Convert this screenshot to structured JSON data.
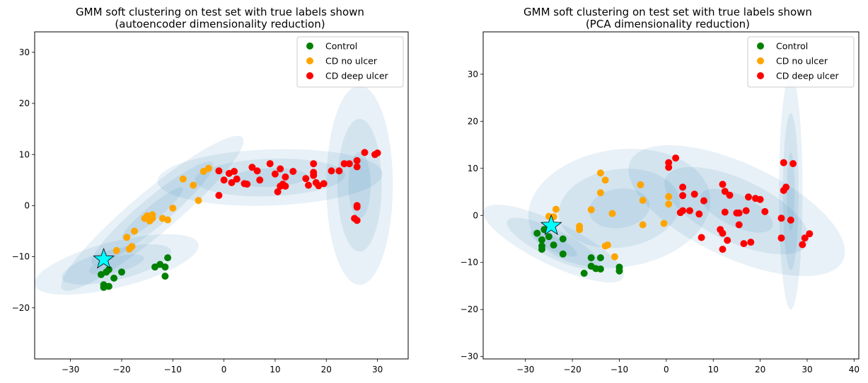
{
  "chart_data": [
    {
      "type": "scatter",
      "title": "GMM soft clustering on test set with true labels shown",
      "subtitle": "(autoencoder dimensionality reduction)",
      "xlim": [
        -37,
        36
      ],
      "ylim": [
        -30,
        34
      ],
      "xticks": [
        -30,
        -20,
        -10,
        0,
        10,
        20,
        30
      ],
      "yticks": [
        -20,
        -10,
        0,
        10,
        20,
        30
      ],
      "legend_position": "top-right",
      "series": [
        {
          "name": "Control",
          "color": "#008000",
          "points": [
            [
              -24,
              -13.5
            ],
            [
              -23,
              -13
            ],
            [
              -22.5,
              -12.5
            ],
            [
              -23.5,
              -15.5
            ],
            [
              -23.5,
              -16
            ],
            [
              -22.5,
              -15.8
            ],
            [
              -21.5,
              -14.2
            ],
            [
              -20,
              -13
            ],
            [
              -13.5,
              -12
            ],
            [
              -12.5,
              -11.5
            ],
            [
              -11.5,
              -12
            ],
            [
              -11,
              -10.2
            ],
            [
              -11.5,
              -13.8
            ]
          ]
        },
        {
          "name": "CD no ulcer",
          "color": "#FFA500",
          "points": [
            [
              -21,
              -8.8
            ],
            [
              -19,
              -6.2
            ],
            [
              -18.5,
              -8.5
            ],
            [
              -18,
              -8
            ],
            [
              -17.5,
              -5
            ],
            [
              -15.5,
              -2.5
            ],
            [
              -15,
              -2
            ],
            [
              -14.5,
              -3
            ],
            [
              -14,
              -2.5
            ],
            [
              -14,
              -1.8
            ],
            [
              -12,
              -2.5
            ],
            [
              -11,
              -2.8
            ],
            [
              -10,
              -0.5
            ],
            [
              -8,
              5.2
            ],
            [
              -6,
              4
            ],
            [
              -5,
              1
            ],
            [
              -4,
              6.7
            ],
            [
              -3,
              7.3
            ]
          ]
        },
        {
          "name": "CD deep ulcer",
          "color": "#FF0000",
          "points": [
            [
              -1,
              2
            ],
            [
              -1,
              6.8
            ],
            [
              0,
              5
            ],
            [
              1,
              6.3
            ],
            [
              1.5,
              4.5
            ],
            [
              2,
              6.7
            ],
            [
              2.5,
              5.2
            ],
            [
              4,
              4.3
            ],
            [
              4.5,
              4.2
            ],
            [
              5.5,
              7.5
            ],
            [
              6.5,
              6.8
            ],
            [
              7,
              5
            ],
            [
              9,
              8.2
            ],
            [
              10,
              6.2
            ],
            [
              10.5,
              2.7
            ],
            [
              11,
              3.8
            ],
            [
              11,
              7.2
            ],
            [
              11.5,
              4.2
            ],
            [
              12,
              5.6
            ],
            [
              12,
              3.8
            ],
            [
              13.5,
              6.7
            ],
            [
              16,
              5.3
            ],
            [
              16.5,
              4
            ],
            [
              17.5,
              6.5
            ],
            [
              17.5,
              8.2
            ],
            [
              17.5,
              5.9
            ],
            [
              18,
              4.5
            ],
            [
              18.5,
              3.9
            ],
            [
              19.5,
              4.3
            ],
            [
              21,
              6.8
            ],
            [
              22.5,
              6.8
            ],
            [
              23.5,
              8.2
            ],
            [
              24.5,
              8.2
            ],
            [
              26,
              8.8
            ],
            [
              26,
              7.6
            ],
            [
              26,
              0
            ],
            [
              26,
              -0.3
            ],
            [
              25.5,
              -2.5
            ],
            [
              26,
              -2.9
            ],
            [
              27.5,
              10.4
            ],
            [
              29.5,
              10
            ],
            [
              30,
              10.3
            ]
          ]
        }
      ],
      "centroid": [
        -23.5,
        -10.5
      ],
      "ellipses": [
        {
          "center": [
            -21,
            -11.5
          ],
          "sx": 16.5,
          "sy": 4.5,
          "angle": 14
        },
        {
          "center": [
            -14,
            -1.5
          ],
          "sx": 23,
          "sy": 4.2,
          "angle": 40
        },
        {
          "center": [
            9,
            5.5
          ],
          "sx": 22,
          "sy": 5.5,
          "angle": 2
        },
        {
          "center": [
            26.5,
            4
          ],
          "sx": 6.5,
          "sy": 19.5,
          "angle": 0
        }
      ]
    },
    {
      "type": "scatter",
      "title": "GMM soft clustering on test set with true labels shown",
      "subtitle": "(PCA dimensionality reduction)",
      "xlim": [
        -39,
        41
      ],
      "ylim": [
        -30.5,
        39
      ],
      "xticks": [
        -30,
        -20,
        -10,
        0,
        10,
        20,
        30,
        40
      ],
      "yticks": [
        -30,
        -20,
        -10,
        0,
        10,
        20,
        30
      ],
      "legend_position": "top-right",
      "series": [
        {
          "name": "Control",
          "color": "#008000",
          "points": [
            [
              -27.5,
              -3.8
            ],
            [
              -26.5,
              -5.2
            ],
            [
              -26.5,
              -6.5
            ],
            [
              -26.5,
              -7.2
            ],
            [
              -26,
              -3
            ],
            [
              -25,
              -4.5
            ],
            [
              -24,
              -6.3
            ],
            [
              -22,
              -5
            ],
            [
              -22,
              -8.2
            ],
            [
              -17.5,
              -12.3
            ],
            [
              -16,
              -9
            ],
            [
              -16,
              -10.8
            ],
            [
              -15,
              -11.3
            ],
            [
              -14,
              -9
            ],
            [
              -14,
              -11.4
            ],
            [
              -10,
              -11
            ],
            [
              -10,
              -11.8
            ]
          ]
        },
        {
          "name": "CD no ulcer",
          "color": "#FFA500",
          "points": [
            [
              -25,
              -0.2
            ],
            [
              -24,
              -0.3
            ],
            [
              -23.5,
              1.3
            ],
            [
              -18.5,
              -2.3
            ],
            [
              -18.5,
              -3
            ],
            [
              -16,
              1.2
            ],
            [
              -14,
              9
            ],
            [
              -14,
              4.8
            ],
            [
              -13,
              7.5
            ],
            [
              -13,
              -6.5
            ],
            [
              -12.5,
              -6.3
            ],
            [
              -11.5,
              0.4
            ],
            [
              -11,
              -8.8
            ],
            [
              -5.5,
              6.5
            ],
            [
              -5,
              3.2
            ],
            [
              -5,
              -2
            ],
            [
              -0.5,
              -1.7
            ],
            [
              0.5,
              4
            ],
            [
              0.5,
              2.4
            ]
          ]
        },
        {
          "name": "CD deep ulcer",
          "color": "#FF0000",
          "points": [
            [
              0.5,
              10.2
            ],
            [
              0.5,
              11.2
            ],
            [
              2,
              12.2
            ],
            [
              3,
              0.6
            ],
            [
              3.5,
              1
            ],
            [
              3.5,
              6
            ],
            [
              3.5,
              4.2
            ],
            [
              5,
              1
            ],
            [
              6,
              4.5
            ],
            [
              7,
              0.3
            ],
            [
              7.5,
              -4.7
            ],
            [
              8,
              3.1
            ],
            [
              11.5,
              -3
            ],
            [
              12,
              -3.8
            ],
            [
              12,
              -7.2
            ],
            [
              12,
              6.6
            ],
            [
              12.5,
              0.7
            ],
            [
              12.5,
              5.1
            ],
            [
              13,
              -5.3
            ],
            [
              13.5,
              4.3
            ],
            [
              15,
              0.5
            ],
            [
              15.5,
              0.5
            ],
            [
              15.5,
              -2
            ],
            [
              16.5,
              -6
            ],
            [
              17,
              1
            ],
            [
              17.5,
              3.9
            ],
            [
              18,
              -5.7
            ],
            [
              19,
              3.6
            ],
            [
              20,
              3.4
            ],
            [
              21,
              0.8
            ],
            [
              24.5,
              -0.6
            ],
            [
              24.5,
              -4.8
            ],
            [
              25,
              11.2
            ],
            [
              25,
              5.3
            ],
            [
              25.5,
              6
            ],
            [
              26.5,
              -1
            ],
            [
              27,
              11
            ],
            [
              29,
              -6.2
            ],
            [
              29.5,
              -4.8
            ],
            [
              30.5,
              -3.9
            ]
          ]
        }
      ],
      "centroid": [
        -24.5,
        -2.2
      ],
      "ellipses": [
        {
          "center": [
            -10,
            1.5
          ],
          "sx": 19.5,
          "sy": 12.5,
          "angle": 8
        },
        {
          "center": [
            -24,
            -6
          ],
          "sx": 16.5,
          "sy": 4.5,
          "angle": -26
        },
        {
          "center": [
            15,
            1
          ],
          "sx": 25,
          "sy": 10,
          "angle": -25
        },
        {
          "center": [
            26.5,
            5
          ],
          "sx": 2.5,
          "sy": 25,
          "angle": 0
        }
      ]
    }
  ]
}
